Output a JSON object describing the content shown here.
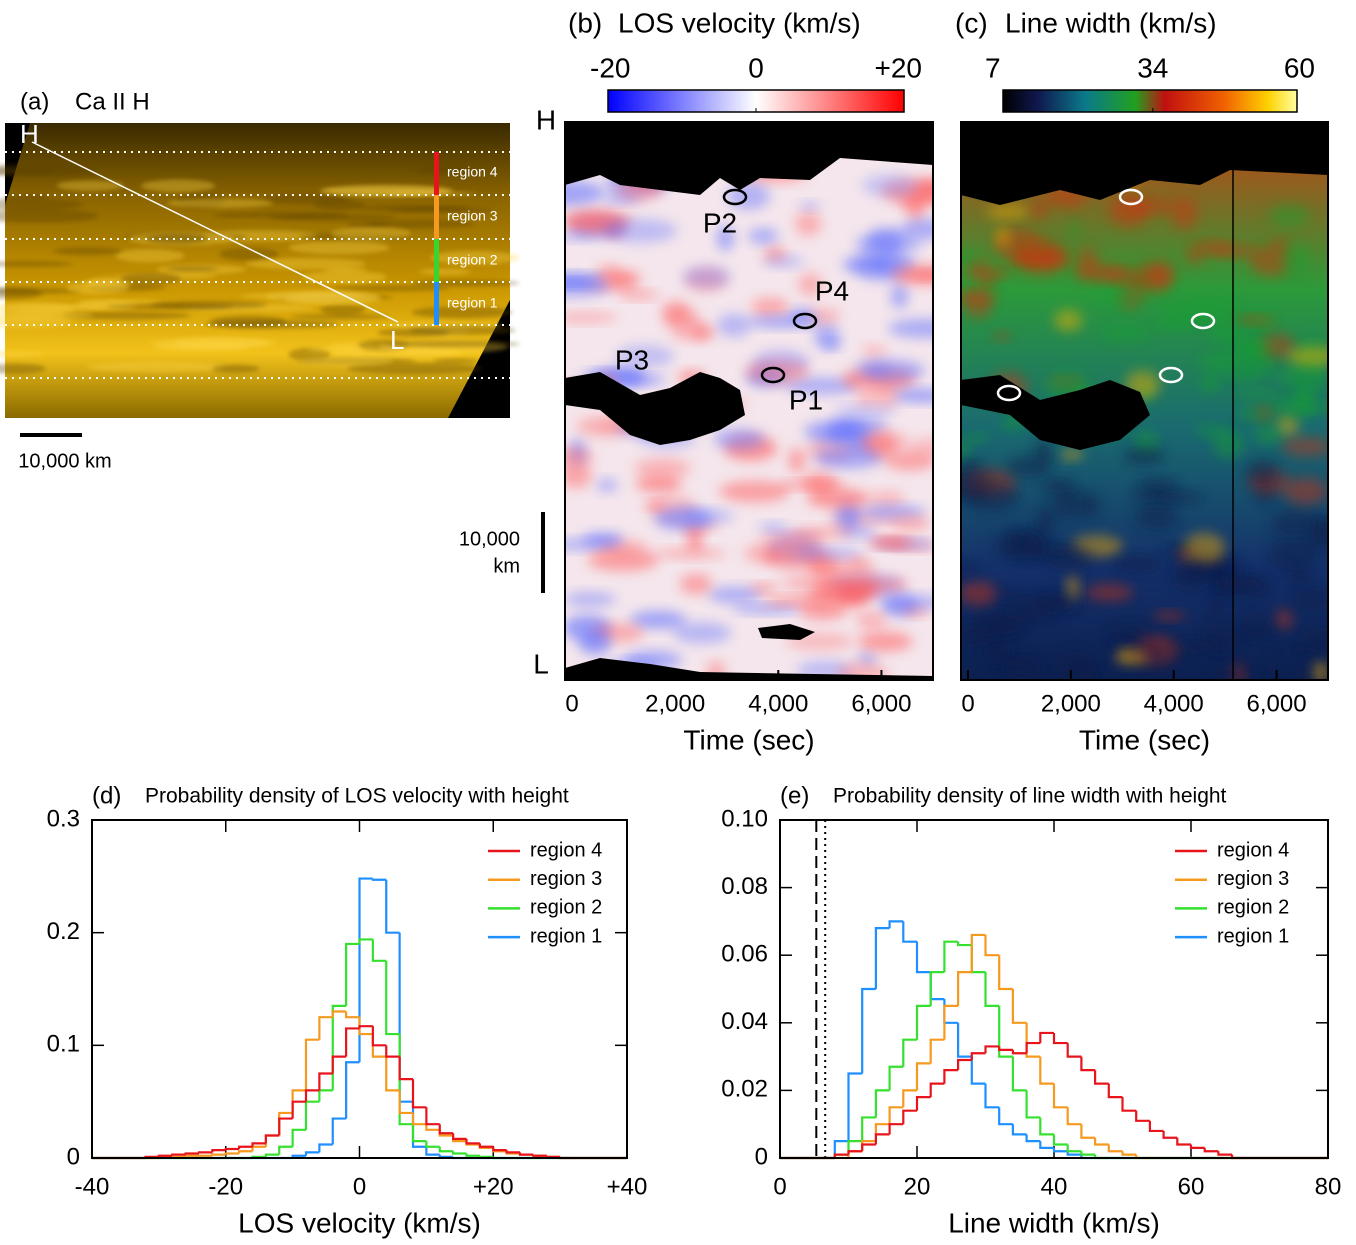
{
  "chart_data": [
    {
      "type": "image",
      "panel_label": "(a)",
      "title": "Ca II H",
      "top_label": "H",
      "bottom_label": "L",
      "regions": [
        {
          "name": "region 4",
          "color": "#e8141c"
        },
        {
          "name": "region 3",
          "color": "#f59a1e"
        },
        {
          "name": "region 2",
          "color": "#35d62f"
        },
        {
          "name": "region 1",
          "color": "#1e8fff"
        }
      ],
      "scale_bar": "10,000 km"
    },
    {
      "type": "heatmap",
      "panel_label": "(b)",
      "title": "LOS velocity (km/s)",
      "top_label": "H",
      "bottom_label": "L",
      "colorbar": {
        "lim": [
          -20,
          20
        ],
        "ticks": [
          -20,
          0,
          {
            "value": 20,
            "label": "+20"
          }
        ]
      },
      "scale_bar": [
        "10,000",
        "km"
      ],
      "annotations": [
        "P2",
        "P4",
        "P3",
        "P1"
      ],
      "xlabel": "Time (sec)",
      "xlim": [
        0,
        7000
      ],
      "xticks": [
        0,
        {
          "value": 2000,
          "label": "2,000"
        },
        {
          "value": 4000,
          "label": "4,000"
        },
        {
          "value": 6000,
          "label": "6,000"
        }
      ]
    },
    {
      "type": "heatmap",
      "panel_label": "(c)",
      "title": "Line width (km/s)",
      "colorbar": {
        "lim": [
          7,
          60
        ],
        "ticks": [
          7,
          34,
          60
        ]
      },
      "xlabel": "Time (sec)",
      "xlim": [
        0,
        7000
      ],
      "xticks": [
        0,
        {
          "value": 2000,
          "label": "2,000"
        },
        {
          "value": 4000,
          "label": "4,000"
        },
        {
          "value": 6000,
          "label": "6,000"
        }
      ]
    },
    {
      "type": "histogram",
      "panel_label": "(d)",
      "title": "Probability density of LOS velocity with height",
      "xlabel": "LOS velocity (km/s)",
      "xlim": [
        -40,
        40
      ],
      "ylim": [
        0,
        0.3
      ],
      "xticks": [
        -40,
        -20,
        0,
        {
          "value": 20,
          "label": "+20"
        },
        {
          "value": 40,
          "label": "+40"
        }
      ],
      "yticks": [
        0,
        0.1,
        0.2,
        0.3
      ],
      "legend": "upper right",
      "bins": [
        -40,
        -38,
        -36,
        -34,
        -32,
        -30,
        -28,
        -26,
        -24,
        -22,
        -20,
        -18,
        -16,
        -14,
        -12,
        -10,
        -8,
        -6,
        -4,
        -2,
        0,
        2,
        4,
        6,
        8,
        10,
        12,
        14,
        16,
        18,
        20,
        22,
        24,
        26,
        28,
        30,
        32,
        34,
        36,
        38,
        40
      ],
      "series": [
        {
          "name": "region 4",
          "color": "#e8141c",
          "values": [
            0,
            0,
            0,
            0,
            0.001,
            0.002,
            0.003,
            0.004,
            0.005,
            0.007,
            0.008,
            0.01,
            0.013,
            0.02,
            0.035,
            0.05,
            0.06,
            0.075,
            0.09,
            0.115,
            0.117,
            0.1,
            0.09,
            0.07,
            0.045,
            0.03,
            0.022,
            0.017,
            0.013,
            0.01,
            0.007,
            0.005,
            0.003,
            0.002,
            0.001,
            0,
            0,
            0,
            0,
            0
          ]
        },
        {
          "name": "region 3",
          "color": "#f59a1e",
          "values": [
            0,
            0,
            0,
            0,
            0,
            0.001,
            0.001,
            0.002,
            0.002,
            0.003,
            0.004,
            0.006,
            0.01,
            0.02,
            0.04,
            0.06,
            0.105,
            0.125,
            0.13,
            0.125,
            0.11,
            0.09,
            0.06,
            0.04,
            0.03,
            0.025,
            0.02,
            0.015,
            0.012,
            0.009,
            0.006,
            0.004,
            0.003,
            0.002,
            0.001,
            0,
            0,
            0,
            0,
            0
          ]
        },
        {
          "name": "region 2",
          "color": "#35e02f",
          "values": [
            0,
            0,
            0,
            0,
            0,
            0,
            0,
            0,
            0,
            0,
            0,
            0,
            0.001,
            0.003,
            0.01,
            0.025,
            0.05,
            0.06,
            0.135,
            0.19,
            0.194,
            0.175,
            0.11,
            0.03,
            0.015,
            0.01,
            0.006,
            0.004,
            0.002,
            0.001,
            0,
            0,
            0,
            0,
            0,
            0,
            0,
            0,
            0,
            0
          ]
        },
        {
          "name": "region 1",
          "color": "#1e8fff",
          "values": [
            0,
            0,
            0,
            0,
            0,
            0,
            0,
            0,
            0,
            0,
            0,
            0,
            0,
            0,
            0,
            0.002,
            0.005,
            0.012,
            0.035,
            0.085,
            0.248,
            0.247,
            0.2,
            0.05,
            0.01,
            0.003,
            0.001,
            0,
            0,
            0,
            0,
            0,
            0,
            0,
            0,
            0,
            0,
            0,
            0,
            0
          ]
        }
      ]
    },
    {
      "type": "histogram",
      "panel_label": "(e)",
      "title": "Probability density of line width with height",
      "xlabel": "Line width (km/s)",
      "xlim": [
        0,
        80
      ],
      "ylim": [
        0,
        0.1
      ],
      "xticks": [
        0,
        20,
        40,
        60,
        80
      ],
      "yticks": [
        0,
        0.02,
        0.04,
        0.06,
        0.08,
        {
          "value": 0.1,
          "label": "0.10"
        }
      ],
      "legend": "upper right",
      "reference_lines": [
        {
          "value": 5.3,
          "style": "dashed"
        },
        {
          "value": 6.6,
          "style": "dotted"
        }
      ],
      "bins": [
        0,
        2,
        4,
        6,
        8,
        10,
        12,
        14,
        16,
        18,
        20,
        22,
        24,
        26,
        28,
        30,
        32,
        34,
        36,
        38,
        40,
        42,
        44,
        46,
        48,
        50,
        52,
        54,
        56,
        58,
        60,
        62,
        64,
        66,
        68,
        70,
        72,
        74,
        76,
        78,
        80
      ],
      "series": [
        {
          "name": "region 4",
          "color": "#e8141c",
          "values": [
            0,
            0,
            0,
            0,
            0.001,
            0.002,
            0.004,
            0.007,
            0.01,
            0.014,
            0.018,
            0.022,
            0.026,
            0.029,
            0.031,
            0.033,
            0.032,
            0.031,
            0.034,
            0.037,
            0.034,
            0.03,
            0.026,
            0.022,
            0.018,
            0.014,
            0.011,
            0.008,
            0.006,
            0.004,
            0.003,
            0.002,
            0.001,
            0,
            0,
            0,
            0,
            0,
            0,
            0
          ]
        },
        {
          "name": "region 3",
          "color": "#f59a1e",
          "values": [
            0,
            0,
            0,
            0,
            0,
            0.002,
            0.005,
            0.01,
            0.015,
            0.02,
            0.028,
            0.035,
            0.045,
            0.055,
            0.066,
            0.06,
            0.05,
            0.04,
            0.03,
            0.022,
            0.015,
            0.01,
            0.006,
            0.004,
            0.002,
            0.001,
            0,
            0,
            0,
            0,
            0,
            0,
            0,
            0,
            0,
            0,
            0,
            0,
            0,
            0
          ]
        },
        {
          "name": "region 2",
          "color": "#35e02f",
          "values": [
            0,
            0,
            0,
            0,
            0.001,
            0.005,
            0.012,
            0.02,
            0.027,
            0.035,
            0.045,
            0.055,
            0.064,
            0.063,
            0.055,
            0.045,
            0.03,
            0.02,
            0.012,
            0.007,
            0.004,
            0.002,
            0.001,
            0,
            0,
            0,
            0,
            0,
            0,
            0,
            0,
            0,
            0,
            0,
            0,
            0,
            0,
            0,
            0,
            0
          ]
        },
        {
          "name": "region 1",
          "color": "#1e8fff",
          "values": [
            0,
            0,
            0,
            0,
            0.005,
            0.025,
            0.05,
            0.068,
            0.07,
            0.064,
            0.055,
            0.047,
            0.04,
            0.03,
            0.022,
            0.015,
            0.01,
            0.007,
            0.005,
            0.003,
            0.002,
            0.001,
            0,
            0,
            0,
            0,
            0,
            0,
            0,
            0,
            0,
            0,
            0,
            0,
            0,
            0,
            0,
            0,
            0,
            0
          ]
        }
      ]
    }
  ]
}
